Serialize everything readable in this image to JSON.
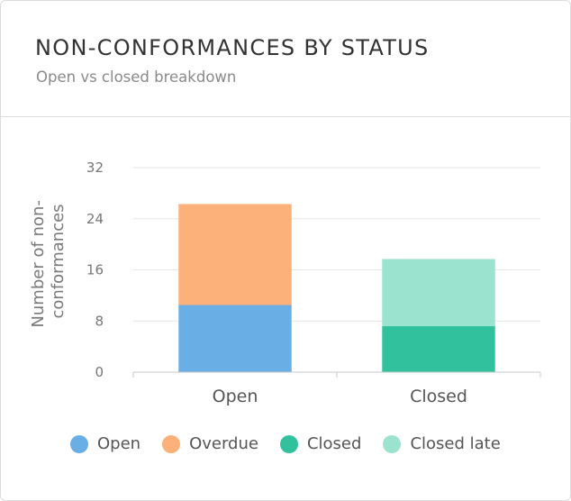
{
  "card": {
    "title": "NON-CONFORMANCES BY STATUS",
    "subtitle": "Open vs closed breakdown"
  },
  "chart_data": {
    "type": "bar",
    "stacked": true,
    "categories": [
      "Open",
      "Closed"
    ],
    "ylabel": "Number of non-conformances",
    "ylabel_lines": [
      "Number of non-",
      "conformances"
    ],
    "ylim": [
      0,
      32
    ],
    "yticks": [
      0,
      8,
      16,
      24,
      32
    ],
    "grid": true,
    "legend_position": "bottom",
    "series": [
      {
        "name": "Open",
        "values": [
          10.5,
          0
        ],
        "color": "#6aaee6"
      },
      {
        "name": "Overdue",
        "values": [
          15.8,
          0
        ],
        "color": "#fcb07a"
      },
      {
        "name": "Closed",
        "values": [
          0,
          7.2
        ],
        "color": "#31c29d"
      },
      {
        "name": "Closed late",
        "values": [
          0,
          10.5
        ],
        "color": "#9be2cf"
      }
    ]
  }
}
